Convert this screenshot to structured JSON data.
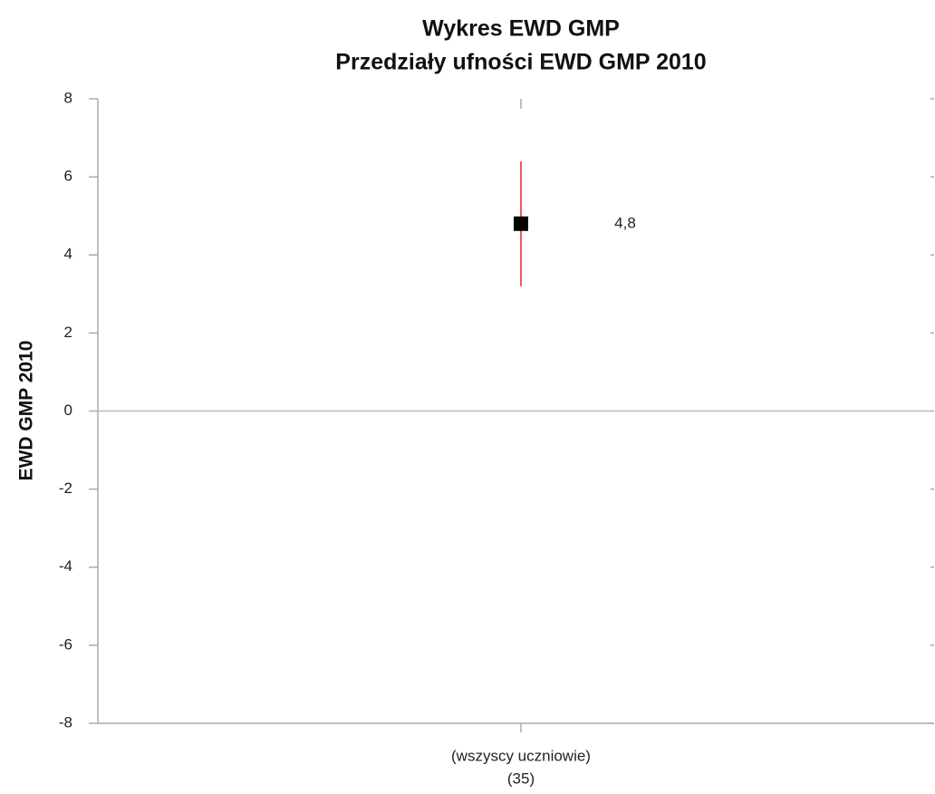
{
  "chart_data": {
    "type": "errorbar",
    "title": "Wykres EWD GMP",
    "subtitle": "Przedziały ufności EWD GMP 2010",
    "ylabel": "EWD GMP 2010",
    "categories": [
      "(wszyscy uczniowie)"
    ],
    "category_sublabels": [
      "(35)"
    ],
    "values": [
      4.8
    ],
    "value_labels": [
      "4,8"
    ],
    "errors": [
      1.6
    ],
    "color": "#000000",
    "error_color": "#e8232c",
    "ylim": [
      -8,
      8
    ],
    "yticks": [
      -8,
      -6,
      -4,
      -2,
      0,
      2,
      4,
      6,
      8
    ],
    "zero_line": true
  }
}
